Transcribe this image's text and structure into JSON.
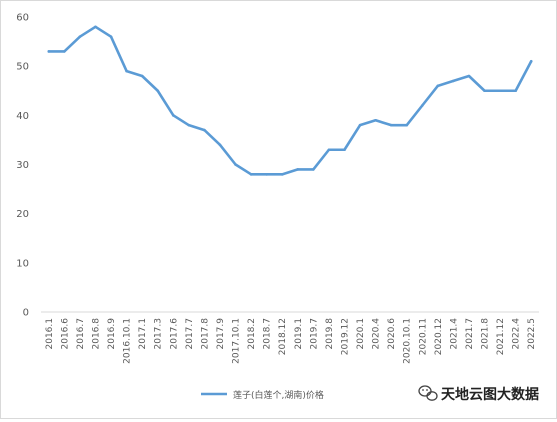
{
  "chart_data": {
    "type": "line",
    "title": "",
    "xlabel": "",
    "ylabel": "",
    "ylim": [
      0,
      60
    ],
    "yticks": [
      "0",
      "10",
      "20",
      "30",
      "40",
      "50",
      "60"
    ],
    "grid": false,
    "legend_position": "bottom",
    "categories": [
      "2016.1",
      "2016.6",
      "2016.7",
      "2016.8",
      "2016.9",
      "2016.10.1",
      "2017.1",
      "2017.3",
      "2017.6",
      "2017.7",
      "2017.8",
      "2017.9",
      "2017.10.1",
      "2018.2",
      "2018.7",
      "2018.12",
      "2019.1",
      "2019.7",
      "2019.8",
      "2019.12",
      "2020.1",
      "2020.4",
      "2020.6",
      "2020.10.1",
      "2020.11",
      "2020.12",
      "2021.4",
      "2021.7",
      "2021.8",
      "2021.12",
      "2022.4",
      "2022.5"
    ],
    "series": [
      {
        "name": "莲子(白莲个,湖南)价格",
        "color": "#5b9bd5",
        "values": [
          53,
          53,
          56,
          58,
          56,
          49,
          48,
          45,
          40,
          38,
          37,
          34,
          30,
          28,
          28,
          28,
          29,
          29,
          33,
          33,
          38,
          39,
          38,
          38,
          42,
          46,
          47,
          48,
          45,
          45,
          45,
          51
        ]
      }
    ]
  },
  "watermark": {
    "icon": "wechat-icon",
    "text": "天地云图大数据"
  }
}
